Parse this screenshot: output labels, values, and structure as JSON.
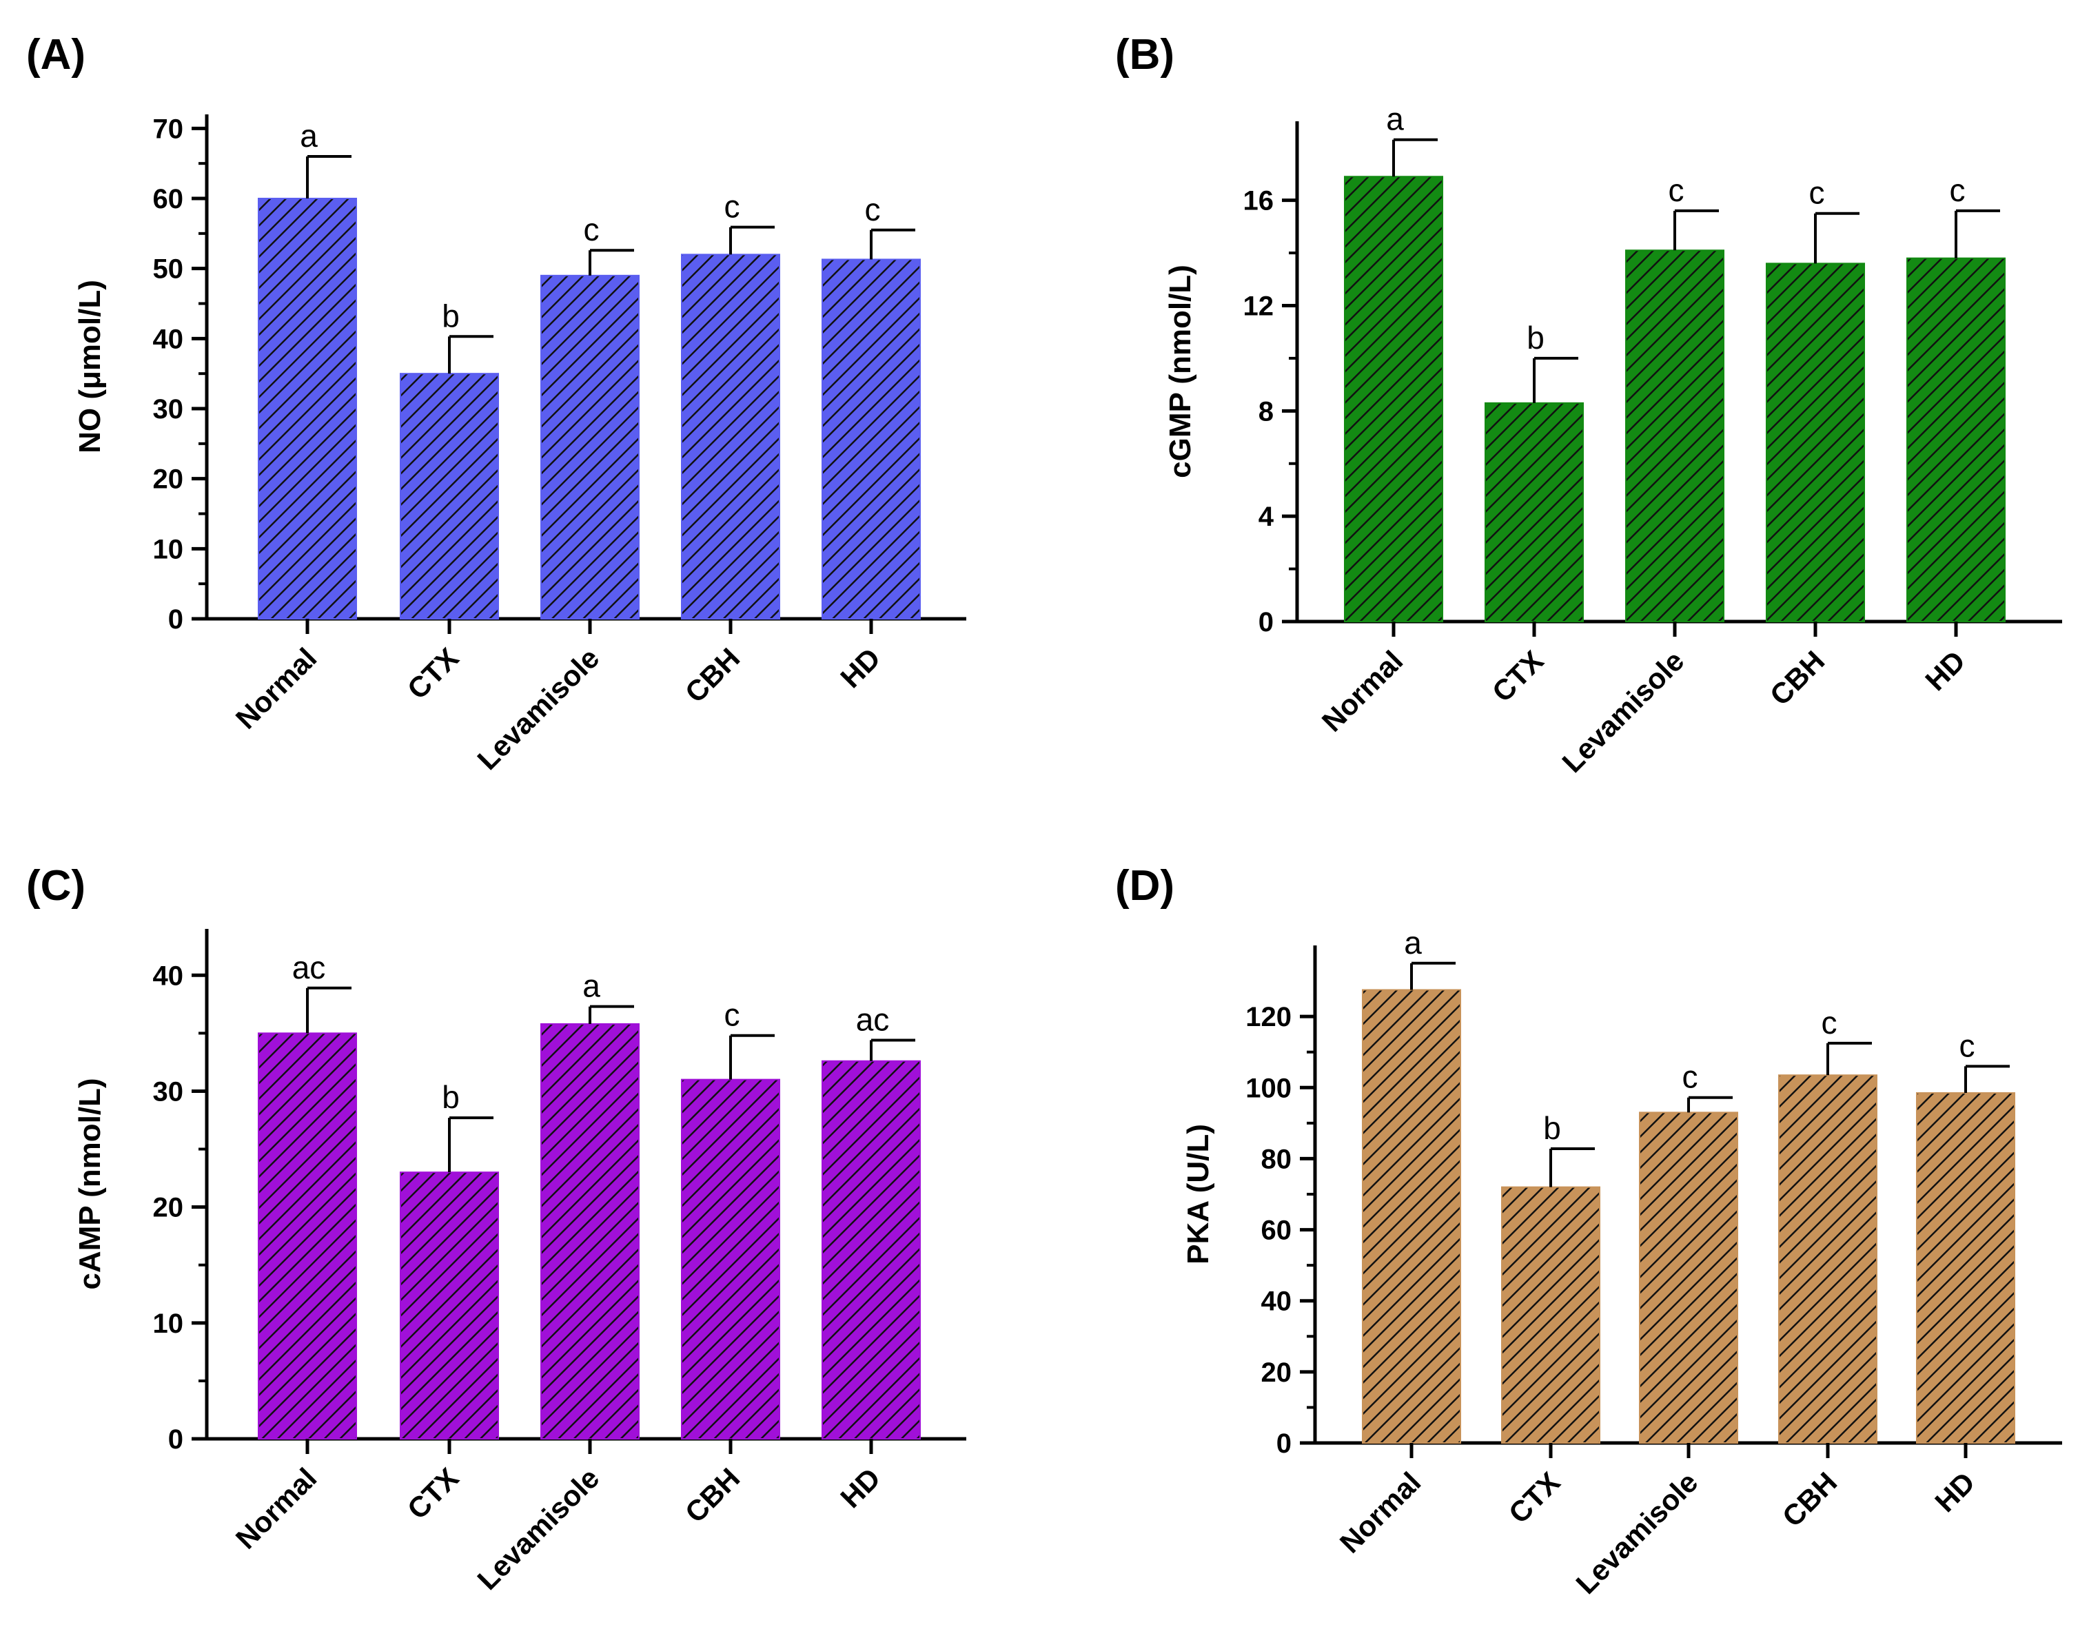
{
  "figure": {
    "panels": [
      "(A)",
      "(B)",
      "(C)",
      "(D)"
    ]
  },
  "chart_data": [
    {
      "type": "bar",
      "panel_label": "(A)",
      "categories": [
        "Normal",
        "CTX",
        "Levamisole",
        "CBH",
        "HD"
      ],
      "values": [
        60,
        35,
        49,
        52,
        51.3
      ],
      "errors": [
        6,
        5.3,
        3.6,
        3.9,
        4.2
      ],
      "significance": [
        "a",
        "b",
        "c",
        "c",
        "c"
      ],
      "ylabel": "NO (μmol/L)",
      "xlabel": "",
      "ylim": [
        0,
        72
      ],
      "yticks": [
        0,
        10,
        20,
        30,
        40,
        50,
        60,
        70
      ],
      "ytick_labels": [
        "0",
        "10",
        "20",
        "30",
        "40",
        "50",
        "60",
        "70"
      ],
      "color": "#5b5ef0"
    },
    {
      "type": "bar",
      "panel_label": "(B)",
      "categories": [
        "Normal",
        "CTX",
        "Levamisole",
        "CBH",
        "HD"
      ],
      "values": [
        16.9,
        8.3,
        14.1,
        13.6,
        13.8
      ],
      "errors": [
        1.4,
        1.7,
        1.5,
        1.9,
        1.8
      ],
      "significance": [
        "a",
        "b",
        "c",
        "c",
        "c"
      ],
      "ylabel": "cGMP (nmol/L)",
      "xlabel": "",
      "ylim": [
        0,
        19
      ],
      "yticks": [
        0,
        4,
        8,
        12,
        16
      ],
      "ytick_labels": [
        "0",
        "4",
        "8",
        "12",
        "16"
      ],
      "color": "#138a13"
    },
    {
      "type": "bar",
      "panel_label": "(C)",
      "categories": [
        "Normal",
        "CTX",
        "Levamisole",
        "CBH",
        "HD"
      ],
      "values": [
        35,
        23,
        35.8,
        31,
        32.6
      ],
      "errors": [
        3.9,
        4.7,
        1.5,
        3.8,
        1.8
      ],
      "significance": [
        "ac",
        "b",
        "a",
        "c",
        "ac"
      ],
      "ylabel": "cAMP (nmol/L)",
      "xlabel": "",
      "ylim": [
        0,
        44
      ],
      "yticks": [
        0,
        10,
        20,
        30,
        40
      ],
      "ytick_labels": [
        "0",
        "10",
        "20",
        "30",
        "40"
      ],
      "color": "#a010d8"
    },
    {
      "type": "bar",
      "panel_label": "(D)",
      "categories": [
        "Normal",
        "CTX",
        "Levamisole",
        "CBH",
        "HD"
      ],
      "values": [
        127.5,
        72,
        93,
        103.5,
        98.5
      ],
      "errors": [
        7.5,
        10.8,
        4.2,
        9,
        7.5
      ],
      "significance": [
        "a",
        "b",
        "c",
        "c",
        "c"
      ],
      "ylabel": "PKA (U/L)",
      "xlabel": "",
      "ylim": [
        0,
        140
      ],
      "yticks": [
        0,
        20,
        40,
        60,
        80,
        100,
        120
      ],
      "ytick_labels": [
        "0",
        "20",
        "40",
        "60",
        "80",
        "100",
        "120"
      ],
      "color": "#c8935a"
    }
  ]
}
